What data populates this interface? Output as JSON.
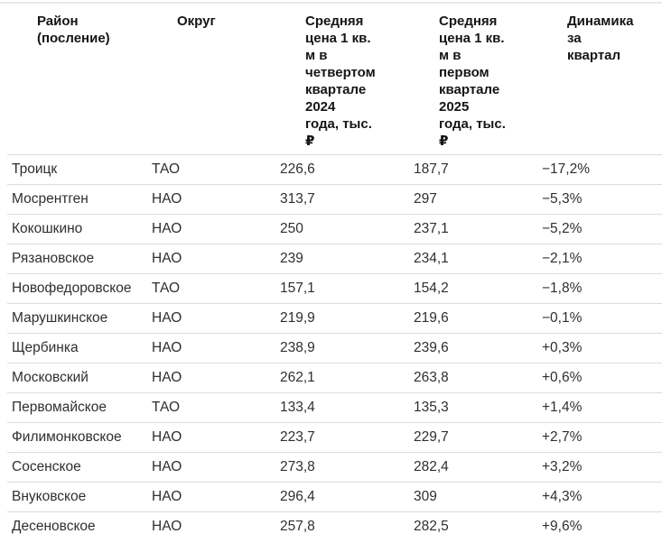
{
  "colors": {
    "background": "#ffffff",
    "header_text": "#151515",
    "body_text": "#2f2f2f",
    "row_border": "#dcdcdc",
    "top_line": "#e7e7e7"
  },
  "table": {
    "headers": [
      {
        "text": "Район (посление)",
        "display": "Район\n(посление)"
      },
      {
        "text": "Округ",
        "display": "Округ"
      },
      {
        "text": "Средняя цена 1 кв. м в четвертом квартале 2024 года, тыс. ₽",
        "display": "Средняя\nцена 1 кв.\nм в\nчетвертом\nквартале\n2024\nгода, тыс.\n₽"
      },
      {
        "text": "Средняя цена 1 кв. м в первом квартале 2025 года, тыс. ₽",
        "display": "Средняя\nцена 1 кв.\nм в\nпервом\nквартале\n2025\nгода, тыс.\n₽"
      },
      {
        "text": "Динамика за квартал",
        "display": "Динамика\nза\nквартал"
      }
    ],
    "rows": [
      {
        "district": "Троицк",
        "okrug": "ТАО",
        "price_q4_2024": "226,6",
        "price_q1_2025": "187,7",
        "dynamics": "−17,2%"
      },
      {
        "district": "Мосрентген",
        "okrug": "НАО",
        "price_q4_2024": "313,7",
        "price_q1_2025": "297",
        "dynamics": "−5,3%"
      },
      {
        "district": "Кокошкино",
        "okrug": "НАО",
        "price_q4_2024": "250",
        "price_q1_2025": "237,1",
        "dynamics": "−5,2%"
      },
      {
        "district": "Рязановское",
        "okrug": "НАО",
        "price_q4_2024": "239",
        "price_q1_2025": "234,1",
        "dynamics": "−2,1%"
      },
      {
        "district": "Новофедоровское",
        "okrug": "ТАО",
        "price_q4_2024": "157,1",
        "price_q1_2025": "154,2",
        "dynamics": "−1,8%"
      },
      {
        "district": "Марушкинское",
        "okrug": "НАО",
        "price_q4_2024": "219,9",
        "price_q1_2025": "219,6",
        "dynamics": "−0,1%"
      },
      {
        "district": "Щербинка",
        "okrug": "НАО",
        "price_q4_2024": "238,9",
        "price_q1_2025": "239,6",
        "dynamics": "+0,3%"
      },
      {
        "district": "Московский",
        "okrug": "НАО",
        "price_q4_2024": "262,1",
        "price_q1_2025": "263,8",
        "dynamics": "+0,6%"
      },
      {
        "district": "Первомайское",
        "okrug": "ТАО",
        "price_q4_2024": "133,4",
        "price_q1_2025": "135,3",
        "dynamics": "+1,4%"
      },
      {
        "district": "Филимонковское",
        "okrug": "НАО",
        "price_q4_2024": "223,7",
        "price_q1_2025": "229,7",
        "dynamics": "+2,7%"
      },
      {
        "district": "Сосенское",
        "okrug": "НАО",
        "price_q4_2024": "273,8",
        "price_q1_2025": "282,4",
        "dynamics": "+3,2%"
      },
      {
        "district": "Внуковское",
        "okrug": "НАО",
        "price_q4_2024": "296,4",
        "price_q1_2025": "309",
        "dynamics": "+4,3%"
      },
      {
        "district": "Десеновское",
        "okrug": "НАО",
        "price_q4_2024": "257,8",
        "price_q1_2025": "282,5",
        "dynamics": "+9,6%"
      }
    ]
  },
  "chart_data": {
    "type": "table",
    "title": "",
    "columns": [
      "Район (посление)",
      "Округ",
      "Средняя цена 1 кв. м в четвертом квартале 2024 года, тыс. ₽",
      "Средняя цена 1 кв. м в первом квартале 2025 года, тыс. ₽",
      "Динамика за квартал"
    ],
    "rows": [
      [
        "Троицк",
        "ТАО",
        226.6,
        187.7,
        "−17,2%"
      ],
      [
        "Мосрентген",
        "НАО",
        313.7,
        297,
        "−5,3%"
      ],
      [
        "Кокошкино",
        "НАО",
        250,
        237.1,
        "−5,2%"
      ],
      [
        "Рязановское",
        "НАО",
        239,
        234.1,
        "−2,1%"
      ],
      [
        "Новофедоровское",
        "ТАО",
        157.1,
        154.2,
        "−1,8%"
      ],
      [
        "Марушкинское",
        "НАО",
        219.9,
        219.6,
        "−0,1%"
      ],
      [
        "Щербинка",
        "НАО",
        238.9,
        239.6,
        "+0,3%"
      ],
      [
        "Московский",
        "НАО",
        262.1,
        263.8,
        "+0,6%"
      ],
      [
        "Первомайское",
        "ТАО",
        133.4,
        135.3,
        "+1,4%"
      ],
      [
        "Филимонковское",
        "НАО",
        223.7,
        229.7,
        "+2,7%"
      ],
      [
        "Сосенское",
        "НАО",
        273.8,
        282.4,
        "+3,2%"
      ],
      [
        "Внуковское",
        "НАО",
        296.4,
        309,
        "+4,3%"
      ],
      [
        "Десеновское",
        "НАО",
        257.8,
        282.5,
        "+9,6%"
      ]
    ]
  }
}
